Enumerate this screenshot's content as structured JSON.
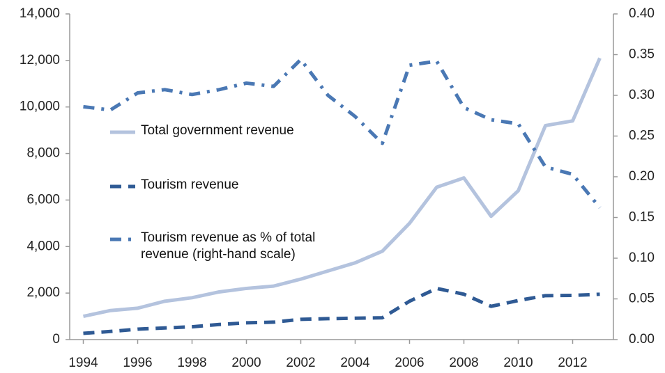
{
  "chart_data": {
    "type": "line",
    "x": [
      1994,
      1995,
      1996,
      1997,
      1998,
      1999,
      2000,
      2001,
      2002,
      2003,
      2004,
      2005,
      2006,
      2007,
      2008,
      2009,
      2010,
      2011,
      2012,
      2013
    ],
    "series": [
      {
        "name": "Total government revenue",
        "color": "#b4c3de",
        "dash": "solid",
        "values": [
          1000,
          1250,
          1350,
          1650,
          1800,
          2050,
          2200,
          2300,
          2600,
          2950,
          3300,
          3800,
          5000,
          6550,
          6950,
          5300,
          6400,
          9200,
          9400,
          12100
        ]
      },
      {
        "name": "Tourism revenue",
        "color": "#2f5a94",
        "dash": "dashed",
        "values": [
          270,
          350,
          450,
          500,
          550,
          650,
          720,
          750,
          870,
          900,
          920,
          940,
          1650,
          2200,
          1950,
          1430,
          1680,
          1890,
          1900,
          1950
        ]
      },
      {
        "name": "Tourism revenue as % of total revenue (right-hand scale)",
        "color": "#4a78b4",
        "dash": "dashdot",
        "axis": "y2",
        "values": [
          0.286,
          0.282,
          0.303,
          0.307,
          0.301,
          0.307,
          0.315,
          0.311,
          0.344,
          0.3,
          0.274,
          0.241,
          0.337,
          0.342,
          0.285,
          0.27,
          0.265,
          0.212,
          0.203,
          0.162
        ]
      }
    ],
    "xlim": [
      1993.5,
      2013.5
    ],
    "xticks": [
      1994,
      1996,
      1998,
      2000,
      2002,
      2004,
      2006,
      2008,
      2010,
      2012
    ],
    "ylim": [
      0,
      14000
    ],
    "yticks": [
      0,
      {
        "value": 2000,
        "label": "2,000"
      },
      {
        "value": 4000,
        "label": "4,000"
      },
      {
        "value": 6000,
        "label": "6,000"
      },
      {
        "value": 8000,
        "label": "8,000"
      },
      {
        "value": 10000,
        "label": "10,000"
      },
      {
        "value": 12000,
        "label": "12,000"
      },
      {
        "value": 14000,
        "label": "14,000"
      }
    ],
    "y2lim": [
      0,
      0.4
    ],
    "y2ticks": [
      {
        "value": 0,
        "label": "0.00"
      },
      {
        "value": 0.05,
        "label": "0.05"
      },
      {
        "value": 0.1,
        "label": "0.10"
      },
      {
        "value": 0.15,
        "label": "0.15"
      },
      {
        "value": 0.2,
        "label": "0.20"
      },
      {
        "value": 0.25,
        "label": "0.25"
      },
      {
        "value": 0.3,
        "label": "0.30"
      },
      {
        "value": 0.35,
        "label": "0.35"
      },
      {
        "value": 0.4,
        "label": "0.40"
      }
    ],
    "legend": "inside-left"
  }
}
